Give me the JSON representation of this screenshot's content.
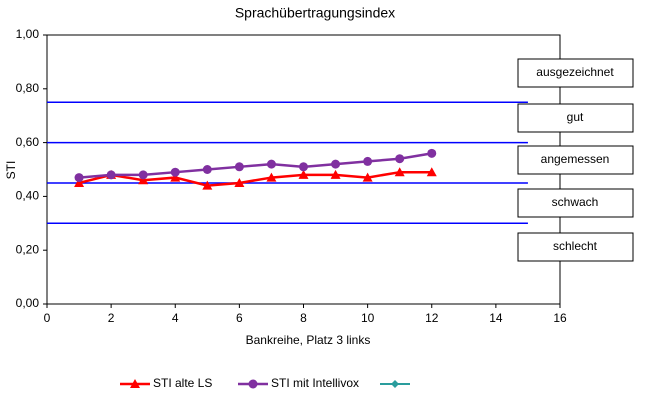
{
  "chart_data": {
    "type": "line",
    "title": "Sprachübertragungsindex",
    "x_label": "Bankreihe, Platz 3 links",
    "y_label": "STI",
    "xlim": [
      0,
      16
    ],
    "xticks": [
      0,
      2,
      4,
      6,
      8,
      10,
      12,
      14,
      16
    ],
    "ylim": [
      0,
      1
    ],
    "yticks": [
      {
        "value": 0,
        "label": "0,00"
      },
      {
        "value": 0.2,
        "label": "0,20"
      },
      {
        "value": 0.4,
        "label": "0,40"
      },
      {
        "value": 0.6,
        "label": "0,60"
      },
      {
        "value": 0.8,
        "label": "0,80"
      },
      {
        "value": 1,
        "label": "1,00"
      }
    ],
    "x": [
      1,
      2,
      3,
      4,
      5,
      6,
      7,
      8,
      9,
      10,
      11,
      12
    ],
    "series": [
      {
        "name": "STI alte LS",
        "color": "#ff0000",
        "marker": "triangle",
        "values": [
          0.45,
          0.48,
          0.46,
          0.47,
          0.44,
          0.45,
          0.47,
          0.48,
          0.48,
          0.47,
          0.49,
          0.49
        ]
      },
      {
        "name": "STI mit Intellivox",
        "color": "#8030a0",
        "marker": "circle",
        "values": [
          0.47,
          0.48,
          0.48,
          0.49,
          0.5,
          0.51,
          0.52,
          0.51,
          0.52,
          0.53,
          0.54,
          0.56
        ]
      }
    ],
    "reference_lines": [
      {
        "y": 0.75,
        "x": [
          0,
          15
        ]
      },
      {
        "y": 0.6,
        "x": [
          0,
          15
        ]
      },
      {
        "y": 0.45,
        "x": [
          0,
          15
        ]
      },
      {
        "y": 0.3,
        "x": [
          0,
          15
        ]
      }
    ],
    "reference_color": "#0000ff",
    "ratings": [
      "ausgezeichnet",
      "gut",
      "angemessen",
      "schwach",
      "schlecht"
    ]
  }
}
